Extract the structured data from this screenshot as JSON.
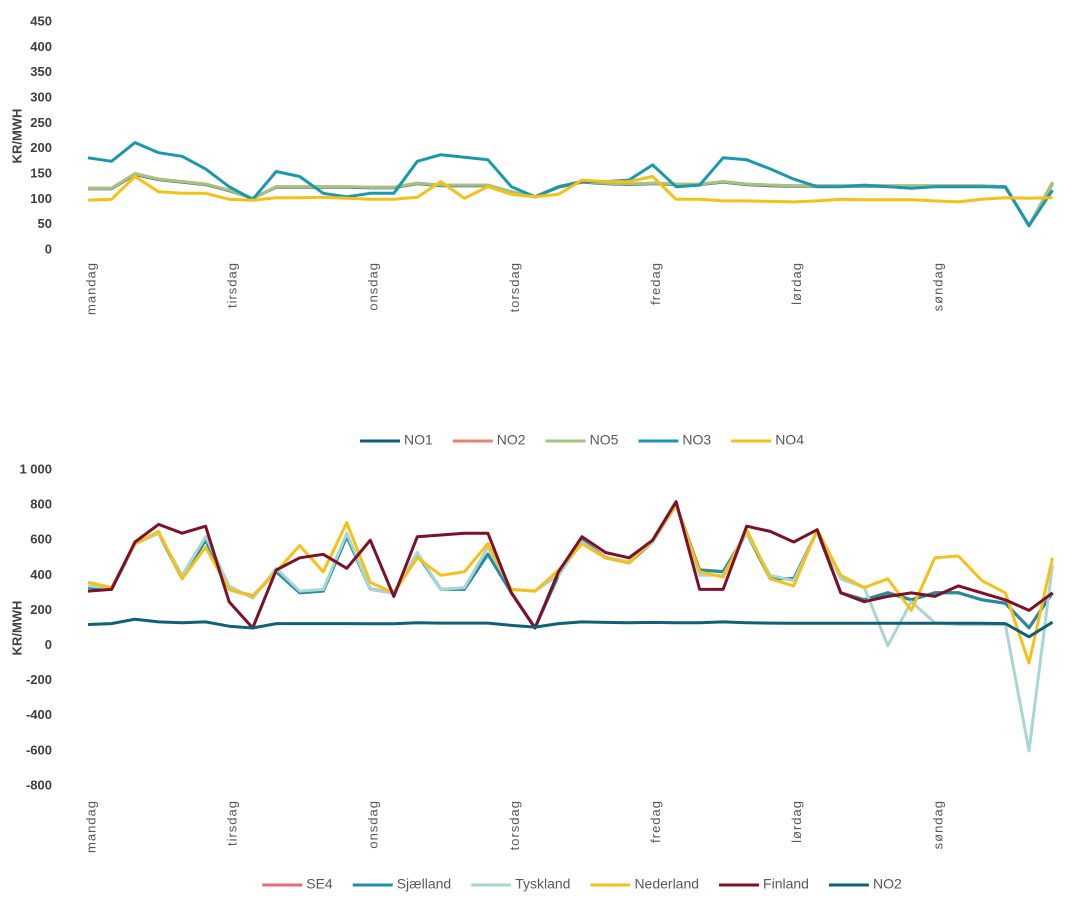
{
  "chart_data": [
    {
      "type": "line",
      "y_label": "KR/MWH",
      "categories": [
        "mandag",
        null,
        null,
        null,
        null,
        null,
        "tirsdag",
        null,
        null,
        null,
        null,
        null,
        "onsdag",
        null,
        null,
        null,
        null,
        null,
        "torsdag",
        null,
        null,
        null,
        null,
        null,
        "fredag",
        null,
        null,
        null,
        null,
        null,
        "lørdag",
        null,
        null,
        null,
        null,
        null,
        "søndag",
        null,
        null,
        null,
        null,
        null
      ],
      "ylim": [
        0,
        450
      ],
      "yticks": [
        0,
        50,
        100,
        150,
        200,
        250,
        300,
        350,
        400,
        450
      ],
      "grid": false,
      "series": [
        {
          "name": "NO1",
          "color": "#0f5f78",
          "values": [
            121,
            121,
            149,
            139,
            134,
            129,
            117,
            102,
            124,
            124,
            124,
            124,
            123,
            123,
            131,
            127,
            127,
            127,
            114,
            105,
            124,
            134,
            131,
            129,
            131,
            129,
            129,
            134,
            129,
            127,
            126,
            126,
            126,
            126,
            126,
            126,
            126,
            126,
            126,
            124,
            48,
            132
          ]
        },
        {
          "name": "NO2",
          "color": "#e8826f",
          "values": [
            122,
            122,
            150,
            140,
            135,
            130,
            118,
            102,
            125,
            125,
            125,
            125,
            124,
            124,
            132,
            128,
            128,
            128,
            115,
            105,
            125,
            135,
            132,
            130,
            132,
            130,
            130,
            135,
            130,
            128,
            127,
            127,
            127,
            127,
            127,
            127,
            127,
            127,
            127,
            125,
            48,
            133
          ]
        },
        {
          "name": "NO5",
          "color": "#a6c27f",
          "values": [
            122,
            122,
            151,
            140,
            135,
            130,
            118,
            102,
            125,
            125,
            125,
            125,
            124,
            124,
            132,
            128,
            128,
            128,
            115,
            105,
            125,
            135,
            132,
            130,
            132,
            130,
            130,
            135,
            130,
            128,
            127,
            127,
            127,
            127,
            127,
            127,
            127,
            127,
            127,
            125,
            48,
            134
          ]
        },
        {
          "name": "NO3",
          "color": "#1a98ad",
          "values": [
            182,
            175,
            212,
            192,
            185,
            160,
            125,
            100,
            155,
            145,
            112,
            105,
            112,
            112,
            175,
            188,
            183,
            178,
            125,
            105,
            125,
            135,
            135,
            138,
            168,
            125,
            128,
            182,
            178,
            160,
            140,
            125,
            125,
            128,
            125,
            122,
            125,
            125,
            125,
            125,
            48,
            118
          ]
        },
        {
          "name": "NO4",
          "color": "#f6c116",
          "values": [
            98,
            100,
            145,
            115,
            112,
            112,
            100,
            98,
            103,
            103,
            104,
            102,
            100,
            100,
            104,
            135,
            102,
            125,
            110,
            105,
            110,
            138,
            135,
            135,
            145,
            100,
            100,
            97,
            97,
            96,
            95,
            97,
            100,
            99,
            99,
            99,
            97,
            95,
            100,
            103,
            102,
            103
          ]
        }
      ]
    },
    {
      "type": "line",
      "y_label": "KR/MWH",
      "categories": [
        "mandag",
        null,
        null,
        null,
        null,
        null,
        "tirsdag",
        null,
        null,
        null,
        null,
        null,
        "onsdag",
        null,
        null,
        null,
        null,
        null,
        "torsdag",
        null,
        null,
        null,
        null,
        null,
        "fredag",
        null,
        null,
        null,
        null,
        null,
        "lørdag",
        null,
        null,
        null,
        null,
        null,
        "søndag",
        null,
        null,
        null,
        null,
        null
      ],
      "ylim": [
        -800,
        1000
      ],
      "yticks": [
        -800,
        -600,
        -400,
        -200,
        0,
        200,
        400,
        600,
        800,
        {
          "value": 1000,
          "label": "1 000"
        }
      ],
      "grid": false,
      "series": [
        {
          "name": "SE4",
          "color": "#e86b7c",
          "values": [
            332,
            322,
            582,
            642,
            382,
            602,
            322,
            282,
            422,
            302,
            312,
            622,
            322,
            302,
            522,
            322,
            322,
            522,
            302,
            102,
            402,
            602,
            502,
            472,
            592,
            802,
            432,
            422,
            642,
            382,
            382,
            652,
            302,
            262,
            302,
            262,
            302,
            302,
            262,
            242,
            102,
            302
          ]
        },
        {
          "name": "Sjælland",
          "color": "#1f8da3",
          "values": [
            330,
            320,
            580,
            640,
            380,
            600,
            320,
            280,
            420,
            300,
            310,
            620,
            320,
            300,
            520,
            320,
            320,
            520,
            300,
            100,
            400,
            600,
            500,
            470,
            590,
            800,
            430,
            420,
            640,
            380,
            380,
            650,
            300,
            260,
            300,
            260,
            300,
            300,
            260,
            240,
            100,
            300
          ]
        },
        {
          "name": "Tyskland",
          "color": "#a9d6d2",
          "values": [
            340,
            330,
            580,
            640,
            400,
            620,
            340,
            270,
            440,
            310,
            320,
            640,
            320,
            300,
            530,
            320,
            330,
            560,
            320,
            310,
            400,
            590,
            500,
            480,
            590,
            800,
            400,
            400,
            640,
            400,
            370,
            650,
            380,
            330,
            0,
            250,
            130,
            120,
            120,
            120,
            -600,
            460
          ]
        },
        {
          "name": "Nederland",
          "color": "#f6c116",
          "values": [
            360,
            330,
            580,
            650,
            380,
            560,
            320,
            280,
            420,
            570,
            420,
            700,
            360,
            300,
            500,
            400,
            420,
            580,
            320,
            310,
            430,
            580,
            500,
            470,
            600,
            800,
            420,
            390,
            660,
            380,
            340,
            660,
            400,
            330,
            380,
            200,
            500,
            510,
            370,
            300,
            -100,
            500
          ]
        },
        {
          "name": "Finland",
          "color": "#7b1227",
          "values": [
            310,
            320,
            590,
            690,
            640,
            680,
            250,
            100,
            430,
            500,
            520,
            440,
            600,
            280,
            620,
            630,
            640,
            640,
            300,
            100,
            420,
            620,
            530,
            500,
            600,
            820,
            320,
            320,
            680,
            650,
            590,
            660,
            300,
            250,
            280,
            300,
            280,
            340,
            300,
            260,
            200,
            300
          ]
        },
        {
          "name": "NO2",
          "color": "#10607a",
          "values": [
            120,
            125,
            150,
            135,
            130,
            135,
            110,
            100,
            125,
            125,
            125,
            125,
            124,
            124,
            130,
            128,
            128,
            128,
            115,
            105,
            125,
            135,
            132,
            130,
            132,
            130,
            130,
            135,
            130,
            128,
            127,
            127,
            127,
            127,
            127,
            127,
            127,
            127,
            127,
            125,
            50,
            133
          ]
        }
      ]
    }
  ]
}
